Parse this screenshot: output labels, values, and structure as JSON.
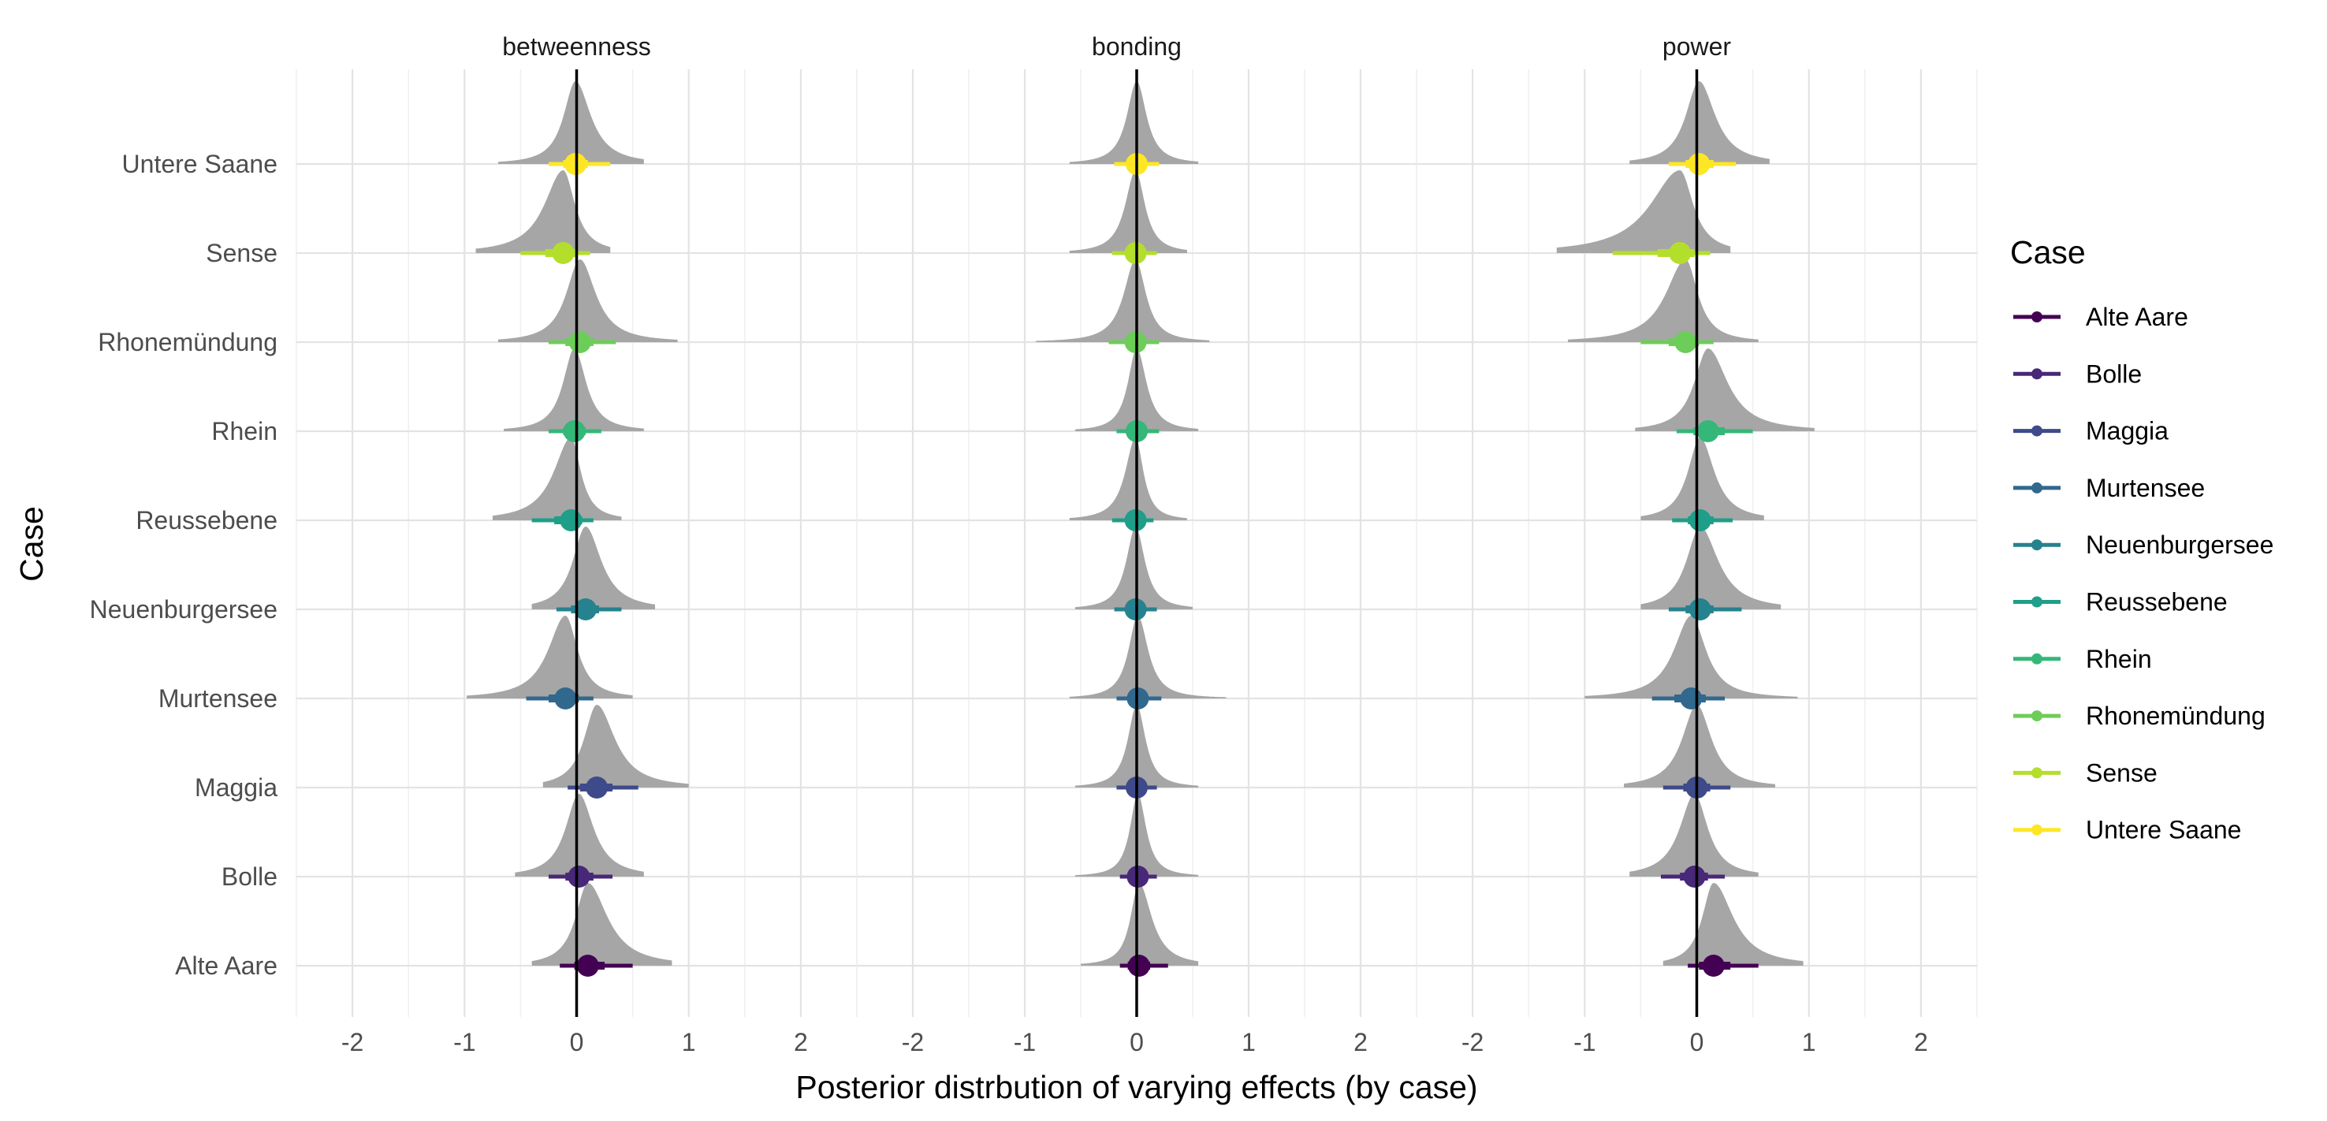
{
  "chart_data": {
    "type": "halfeye",
    "xlabel": "Posterior distrbution of varying effects (by case)",
    "ylabel": "Case",
    "xlim": [
      -2.5,
      2.5
    ],
    "x_ticks": [
      -2,
      -1,
      0,
      1,
      2
    ],
    "vertical_reference_line": 0,
    "grid": true,
    "legend": {
      "title": "Case",
      "position": "right",
      "entries": [
        "Alte Aare",
        "Bolle",
        "Maggia",
        "Murtensee",
        "Neuenburgersee",
        "Reussebene",
        "Rhein",
        "Rhonemündung",
        "Sense",
        "Untere Saane"
      ]
    },
    "categories": [
      "Alte Aare",
      "Bolle",
      "Maggia",
      "Murtensee",
      "Neuenburgersee",
      "Reussebene",
      "Rhein",
      "Rhonemündung",
      "Sense",
      "Untere Saane"
    ],
    "colors": {
      "Alte Aare": "#440154",
      "Bolle": "#482878",
      "Maggia": "#3E4A89",
      "Murtensee": "#31688E",
      "Neuenburgersee": "#26828E",
      "Reussebene": "#1F9E89",
      "Rhein": "#35B779",
      "Rhonemündung": "#6DCD59",
      "Sense": "#B4DE2C",
      "Untere Saane": "#FDE725"
    },
    "density_color": "#A6A6A6",
    "panels": [
      {
        "title": "betweenness",
        "series": [
          {
            "case": "Alte Aare",
            "median": 0.1,
            "q66": [
              -0.02,
              0.25
            ],
            "q95": [
              -0.15,
              0.5
            ],
            "range": [
              -0.4,
              0.85
            ]
          },
          {
            "case": "Bolle",
            "median": 0.02,
            "q66": [
              -0.1,
              0.15
            ],
            "q95": [
              -0.25,
              0.32
            ],
            "range": [
              -0.55,
              0.6
            ]
          },
          {
            "case": "Maggia",
            "median": 0.18,
            "q66": [
              0.03,
              0.32
            ],
            "q95": [
              -0.08,
              0.55
            ],
            "range": [
              -0.3,
              1.0
            ]
          },
          {
            "case": "Murtensee",
            "median": -0.1,
            "q66": [
              -0.25,
              0.02
            ],
            "q95": [
              -0.45,
              0.15
            ],
            "range": [
              -0.98,
              0.5
            ]
          },
          {
            "case": "Neuenburgersee",
            "median": 0.08,
            "q66": [
              -0.05,
              0.2
            ],
            "q95": [
              -0.18,
              0.4
            ],
            "range": [
              -0.4,
              0.7
            ]
          },
          {
            "case": "Reussebene",
            "median": -0.05,
            "q66": [
              -0.2,
              0.05
            ],
            "q95": [
              -0.4,
              0.15
            ],
            "range": [
              -0.75,
              0.4
            ]
          },
          {
            "case": "Rhein",
            "median": -0.02,
            "q66": [
              -0.12,
              0.08
            ],
            "q95": [
              -0.25,
              0.22
            ],
            "range": [
              -0.65,
              0.6
            ]
          },
          {
            "case": "Rhonemündung",
            "median": 0.03,
            "q66": [
              -0.1,
              0.15
            ],
            "q95": [
              -0.25,
              0.35
            ],
            "range": [
              -0.7,
              0.9
            ]
          },
          {
            "case": "Sense",
            "median": -0.12,
            "q66": [
              -0.28,
              0.0
            ],
            "q95": [
              -0.5,
              0.12
            ],
            "range": [
              -0.9,
              0.3
            ]
          },
          {
            "case": "Untere Saane",
            "median": -0.01,
            "q66": [
              -0.12,
              0.1
            ],
            "q95": [
              -0.25,
              0.3
            ],
            "range": [
              -0.7,
              0.6
            ]
          }
        ]
      },
      {
        "title": "bonding",
        "series": [
          {
            "case": "Alte Aare",
            "median": 0.02,
            "q66": [
              -0.08,
              0.12
            ],
            "q95": [
              -0.15,
              0.28
            ],
            "range": [
              -0.5,
              0.55
            ]
          },
          {
            "case": "Bolle",
            "median": 0.01,
            "q66": [
              -0.06,
              0.08
            ],
            "q95": [
              -0.15,
              0.18
            ],
            "range": [
              -0.55,
              0.55
            ]
          },
          {
            "case": "Maggia",
            "median": 0.0,
            "q66": [
              -0.07,
              0.07
            ],
            "q95": [
              -0.18,
              0.18
            ],
            "range": [
              -0.55,
              0.55
            ]
          },
          {
            "case": "Murtensee",
            "median": 0.01,
            "q66": [
              -0.07,
              0.08
            ],
            "q95": [
              -0.18,
              0.22
            ],
            "range": [
              -0.6,
              0.8
            ]
          },
          {
            "case": "Neuenburgersee",
            "median": -0.01,
            "q66": [
              -0.08,
              0.06
            ],
            "q95": [
              -0.2,
              0.18
            ],
            "range": [
              -0.55,
              0.5
            ]
          },
          {
            "case": "Reussebene",
            "median": -0.01,
            "q66": [
              -0.09,
              0.06
            ],
            "q95": [
              -0.22,
              0.15
            ],
            "range": [
              -0.6,
              0.45
            ]
          },
          {
            "case": "Rhein",
            "median": 0.0,
            "q66": [
              -0.07,
              0.07
            ],
            "q95": [
              -0.18,
              0.2
            ],
            "range": [
              -0.55,
              0.55
            ]
          },
          {
            "case": "Rhonemündung",
            "median": -0.01,
            "q66": [
              -0.1,
              0.07
            ],
            "q95": [
              -0.25,
              0.2
            ],
            "range": [
              -0.9,
              0.65
            ]
          },
          {
            "case": "Sense",
            "median": -0.01,
            "q66": [
              -0.08,
              0.07
            ],
            "q95": [
              -0.22,
              0.18
            ],
            "range": [
              -0.6,
              0.45
            ]
          },
          {
            "case": "Untere Saane",
            "median": 0.0,
            "q66": [
              -0.07,
              0.07
            ],
            "q95": [
              -0.2,
              0.2
            ],
            "range": [
              -0.6,
              0.55
            ]
          }
        ]
      },
      {
        "title": "power",
        "series": [
          {
            "case": "Alte Aare",
            "median": 0.15,
            "q66": [
              0.02,
              0.3
            ],
            "q95": [
              -0.08,
              0.55
            ],
            "range": [
              -0.3,
              0.95
            ]
          },
          {
            "case": "Bolle",
            "median": -0.02,
            "q66": [
              -0.15,
              0.1
            ],
            "q95": [
              -0.32,
              0.25
            ],
            "range": [
              -0.6,
              0.55
            ]
          },
          {
            "case": "Maggia",
            "median": 0.0,
            "q66": [
              -0.12,
              0.12
            ],
            "q95": [
              -0.3,
              0.3
            ],
            "range": [
              -0.65,
              0.7
            ]
          },
          {
            "case": "Murtensee",
            "median": -0.05,
            "q66": [
              -0.2,
              0.08
            ],
            "q95": [
              -0.4,
              0.25
            ],
            "range": [
              -1.0,
              0.9
            ]
          },
          {
            "case": "Neuenburgersee",
            "median": 0.03,
            "q66": [
              -0.1,
              0.15
            ],
            "q95": [
              -0.25,
              0.4
            ],
            "range": [
              -0.5,
              0.75
            ]
          },
          {
            "case": "Reussebene",
            "median": 0.03,
            "q66": [
              -0.08,
              0.15
            ],
            "q95": [
              -0.22,
              0.32
            ],
            "range": [
              -0.5,
              0.6
            ]
          },
          {
            "case": "Rhein",
            "median": 0.1,
            "q66": [
              -0.03,
              0.25
            ],
            "q95": [
              -0.18,
              0.5
            ],
            "range": [
              -0.55,
              1.05
            ]
          },
          {
            "case": "Rhonemündung",
            "median": -0.1,
            "q66": [
              -0.25,
              0.02
            ],
            "q95": [
              -0.5,
              0.15
            ],
            "range": [
              -1.15,
              0.55
            ]
          },
          {
            "case": "Sense",
            "median": -0.15,
            "q66": [
              -0.35,
              -0.02
            ],
            "q95": [
              -0.75,
              0.12
            ],
            "range": [
              -1.25,
              0.3
            ]
          },
          {
            "case": "Untere Saane",
            "median": 0.02,
            "q66": [
              -0.1,
              0.15
            ],
            "q95": [
              -0.25,
              0.35
            ],
            "range": [
              -0.6,
              0.65
            ]
          }
        ]
      }
    ]
  }
}
